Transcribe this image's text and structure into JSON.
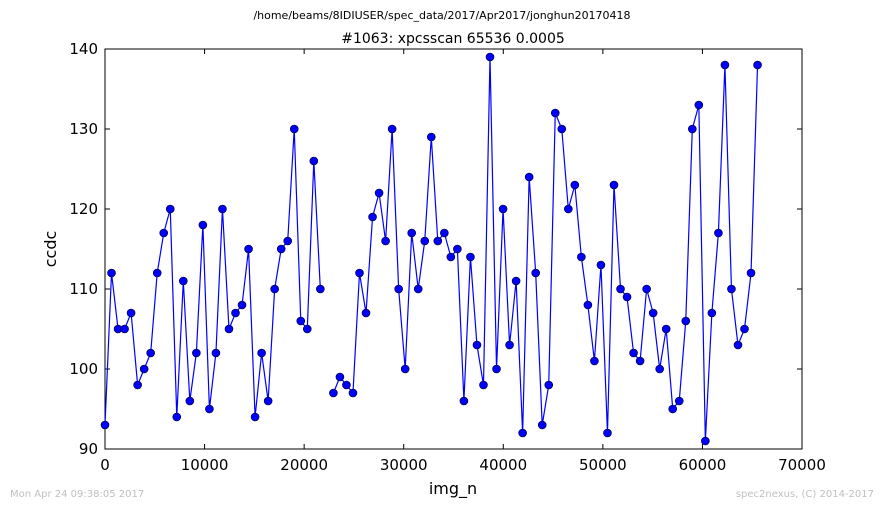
{
  "header": {
    "path": "/home/beams/8IDIUSER/spec_data/2017/Apr2017/jonghun20170418"
  },
  "footer": {
    "timestamp": "Mon Apr 24 09:38:05 2017",
    "credit": "spec2nexus, (C) 2014-2017"
  },
  "chart_data": {
    "type": "line",
    "title": "#1063: xpcsscan 65536 0.0005",
    "xlabel": "img_n",
    "ylabel": "ccdc",
    "xlim": [
      0,
      70000
    ],
    "ylim": [
      90,
      140
    ],
    "xticks": [
      0,
      10000,
      20000,
      30000,
      40000,
      50000,
      60000,
      70000
    ],
    "yticks": [
      90,
      100,
      110,
      120,
      130,
      140
    ],
    "grid": false,
    "line_color": "#0000ff",
    "marker_color": "#0000ff",
    "series": [
      {
        "x": [
          0,
          655,
          1311,
          1966,
          2621,
          3277,
          3932,
          4588,
          5243,
          5898,
          6554,
          7209,
          7864,
          8520,
          9175,
          9830,
          10486,
          11141,
          11796,
          12452,
          13107,
          13762,
          14418,
          15073,
          15729,
          16384,
          17039,
          17695,
          18350,
          19005,
          19661,
          20316,
          20972,
          21627,
          22282,
          22938,
          23593,
          24248,
          24904,
          25559,
          26214,
          26870,
          27525,
          28181,
          28836,
          29491,
          30147,
          30802,
          31457,
          32113,
          32768,
          33423,
          34079,
          34734,
          35390,
          36045,
          36700,
          37356,
          38011,
          38666,
          39322,
          39977,
          40632,
          41288,
          41943,
          42599,
          43254,
          43909,
          44565,
          45220,
          45875,
          46531,
          47186,
          47841,
          48497,
          49152,
          49808,
          50463,
          51118,
          51774,
          52429,
          53084,
          53740,
          54395,
          55050,
          55706,
          56361,
          57017,
          57672,
          58327,
          58983,
          59638,
          60293,
          60949,
          61604,
          62259,
          62915,
          63570,
          64225,
          64881,
          65536
        ],
        "y": [
          93,
          112,
          105,
          105,
          107,
          98,
          100,
          102,
          112,
          117,
          120,
          94,
          111,
          96,
          102,
          118,
          95,
          102,
          120,
          105,
          107,
          108,
          115,
          94,
          102,
          96,
          110,
          115,
          116,
          130,
          106,
          105,
          126,
          110,
          null,
          97,
          99,
          98,
          97,
          112,
          107,
          119,
          122,
          116,
          130,
          110,
          100,
          117,
          110,
          116,
          129,
          116,
          117,
          114,
          115,
          96,
          114,
          103,
          98,
          139,
          100,
          120,
          103,
          111,
          92,
          124,
          112,
          93,
          98,
          132,
          130,
          120,
          123,
          114,
          108,
          101,
          113,
          92,
          123,
          110,
          109,
          102,
          101,
          110,
          107,
          100,
          105,
          95,
          96,
          106,
          130,
          133,
          91,
          107,
          117,
          138,
          110,
          103,
          105,
          112,
          138
        ]
      }
    ]
  }
}
